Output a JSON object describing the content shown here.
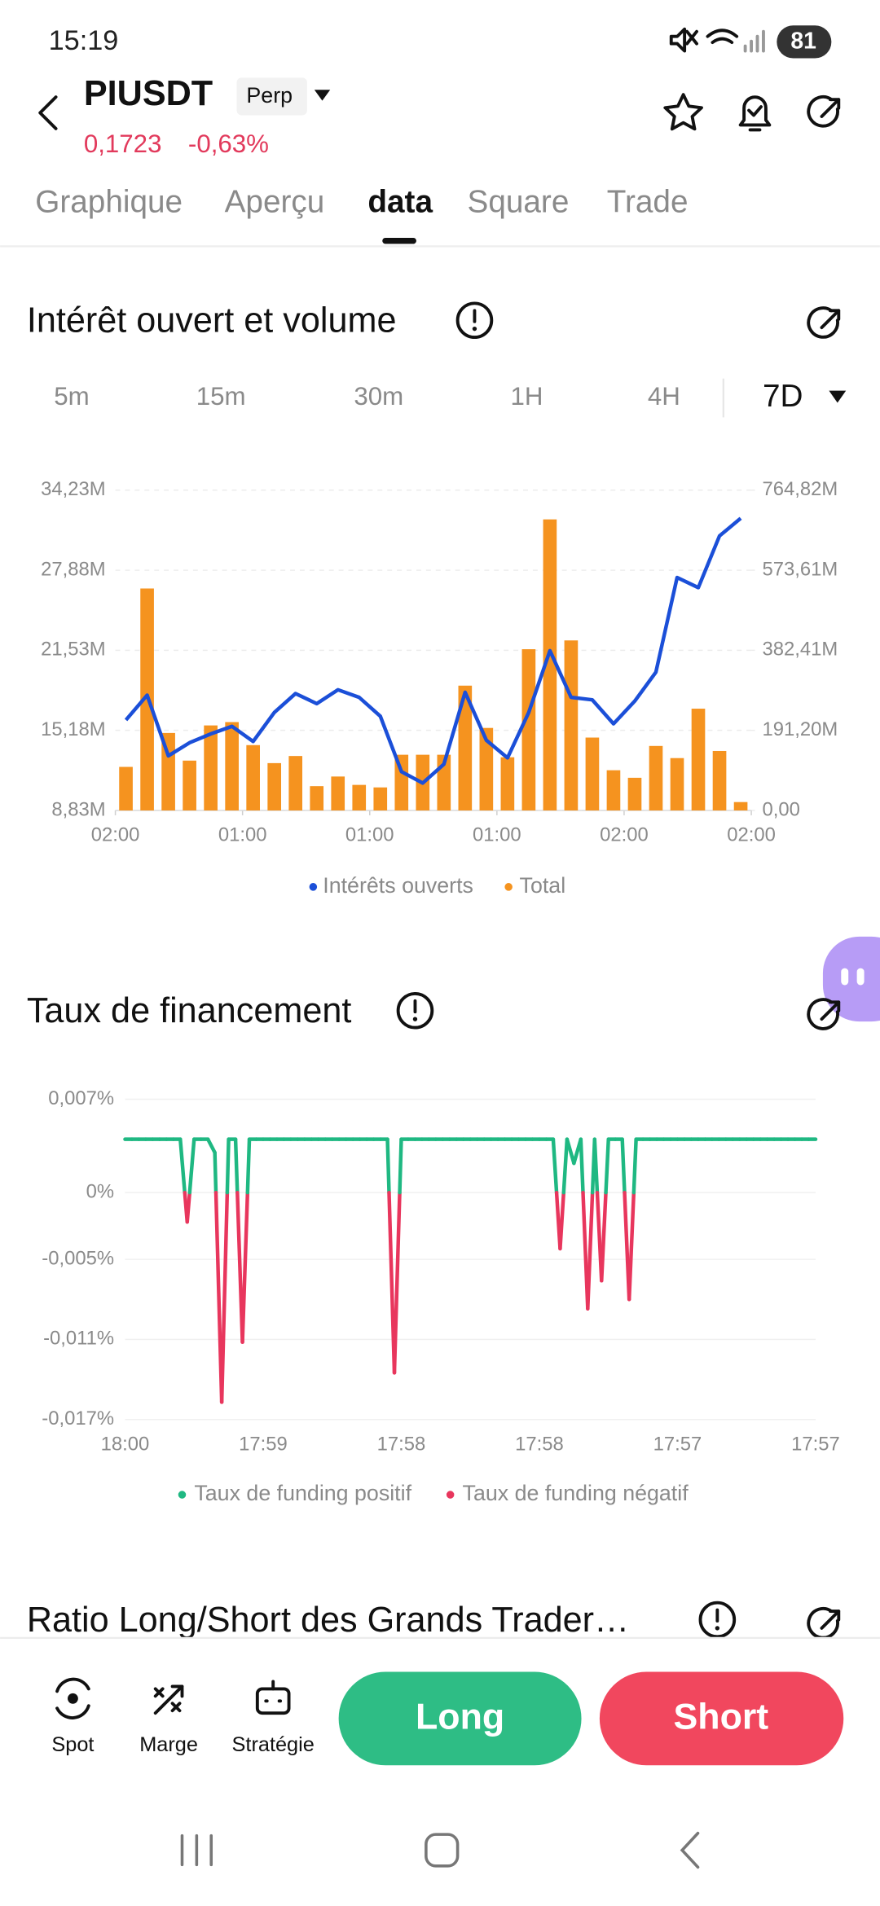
{
  "status_bar": {
    "time": "15:19",
    "battery": "81"
  },
  "header": {
    "symbol": "PIUSDT",
    "contract": "Perp",
    "price": "0,1723",
    "change": "-0,63%"
  },
  "tabs": [
    "Graphique",
    "Aperçu",
    "data",
    "Square",
    "Trade"
  ],
  "active_tab": 2,
  "sections": [
    {
      "title": "Intérêt ouvert et volume"
    },
    {
      "title": "Taux de financement"
    },
    {
      "title": "Ratio Long/Short des Grands Trader…"
    }
  ],
  "intervals": [
    "5m",
    "15m",
    "30m",
    "1H",
    "4H",
    "7D"
  ],
  "active_interval": 5,
  "chart_data": [
    {
      "type": "combo",
      "grid": true,
      "xlim": [
        0,
        30
      ],
      "xticks": [
        {
          "value": 0,
          "label": "02:00"
        },
        {
          "value": 6,
          "label": "01:00"
        },
        {
          "value": 12,
          "label": "01:00"
        },
        {
          "value": 18,
          "label": "01:00"
        },
        {
          "value": 24,
          "label": "02:00"
        },
        {
          "value": 30,
          "label": "02:00"
        }
      ],
      "ylim": [
        8.83,
        34.23
      ],
      "yticks": [
        {
          "value": 8.83,
          "label": "8,83M"
        },
        {
          "value": 15.18,
          "label": "15,18M"
        },
        {
          "value": 21.53,
          "label": "21,53M"
        },
        {
          "value": 27.88,
          "label": "27,88M"
        },
        {
          "value": 34.23,
          "label": "34,23M"
        }
      ],
      "y2lim": [
        0,
        764.82
      ],
      "y2ticks": [
        {
          "value": 0,
          "label": "0,00"
        },
        {
          "value": 191.2,
          "label": "191,20M"
        },
        {
          "value": 382.41,
          "label": "382,41M"
        },
        {
          "value": 573.61,
          "label": "573,61M"
        },
        {
          "value": 764.82,
          "label": "764,82M"
        }
      ],
      "series": [
        {
          "name": "Intérêts ouverts",
          "type": "line",
          "color": "#1b4fd8",
          "values": [
            16.0,
            17.97,
            13.16,
            14.2,
            14.9,
            15.5,
            14.3,
            16.6,
            18.1,
            17.3,
            18.4,
            17.8,
            16.3,
            11.9,
            11.0,
            12.5,
            18.2,
            14.4,
            13.0,
            16.6,
            21.5,
            17.8,
            17.6,
            15.7,
            17.5,
            19.8,
            27.3,
            26.5,
            30.6,
            32.0
          ]
        },
        {
          "name": "Total",
          "type": "bar",
          "axis": "y2",
          "color": "#f5931f",
          "values": [
            104,
            530,
            185,
            119,
            203,
            211,
            156,
            113,
            130,
            58,
            81,
            61,
            55,
            133,
            133,
            133,
            298,
            197,
            127,
            385,
            695,
            406,
            174,
            96,
            78,
            154,
            125,
            243,
            142,
            20
          ]
        }
      ]
    },
    {
      "type": "signed_line",
      "grid": true,
      "categories": [
        "18:00",
        null,
        null,
        null,
        null,
        null,
        null,
        null,
        null,
        null,
        null,
        null,
        null,
        null,
        null,
        null,
        null,
        null,
        null,
        null,
        "17:59",
        null,
        null,
        null,
        null,
        null,
        null,
        null,
        null,
        null,
        null,
        null,
        null,
        null,
        null,
        null,
        null,
        null,
        null,
        null,
        "17:58",
        null,
        null,
        null,
        null,
        null,
        null,
        null,
        null,
        null,
        null,
        null,
        null,
        null,
        null,
        null,
        null,
        null,
        null,
        null,
        "17:58",
        null,
        null,
        null,
        null,
        null,
        null,
        null,
        null,
        null,
        null,
        null,
        null,
        null,
        null,
        null,
        null,
        null,
        null,
        null,
        "17:57",
        null,
        null,
        null,
        null,
        null,
        null,
        null,
        null,
        null,
        null,
        null,
        null,
        null,
        null,
        null,
        null,
        null,
        null,
        null,
        "17:57"
      ],
      "values": [
        0.004,
        0.004,
        0.004,
        0.004,
        0.004,
        0.004,
        0.004,
        0.004,
        0.004,
        -0.0022,
        0.004,
        0.004,
        0.004,
        0.003,
        -0.0157,
        0.004,
        0.004,
        -0.0112,
        0.004,
        0.004,
        0.004,
        0.004,
        0.004,
        0.004,
        0.004,
        0.004,
        0.004,
        0.004,
        0.004,
        0.004,
        0.004,
        0.004,
        0.004,
        0.004,
        0.004,
        0.004,
        0.004,
        0.004,
        0.004,
        -0.0135,
        0.004,
        0.004,
        0.004,
        0.004,
        0.004,
        0.004,
        0.004,
        0.004,
        0.004,
        0.004,
        0.004,
        0.004,
        0.004,
        0.004,
        0.004,
        0.004,
        0.004,
        0.004,
        0.004,
        0.004,
        0.004,
        0.004,
        0.004,
        -0.0042,
        0.004,
        0.0022,
        0.004,
        -0.0087,
        0.004,
        -0.0066,
        0.004,
        0.004,
        0.004,
        -0.008,
        0.004,
        0.004,
        0.004,
        0.004,
        0.004,
        0.004,
        0.004,
        0.004,
        0.004,
        0.004,
        0.004,
        0.004,
        0.004,
        0.004,
        0.004,
        0.004,
        0.004,
        0.004,
        0.004,
        0.004,
        0.004,
        0.004,
        0.004,
        0.004,
        0.004,
        0.004,
        0.004
      ],
      "ylim": [
        -0.017,
        0.007
      ],
      "yticks": [
        {
          "value": 0.007,
          "label": "0,007%"
        },
        {
          "value": 0,
          "label": "0%"
        },
        {
          "value": -0.005,
          "label": "-0,005%"
        },
        {
          "value": -0.011,
          "label": "-0,011%"
        },
        {
          "value": -0.017,
          "label": "-0,017%"
        }
      ],
      "series": [
        {
          "name": "Taux de funding positif",
          "color": "#1fb882"
        },
        {
          "name": "Taux de funding négatif",
          "color": "#e8365d"
        }
      ]
    }
  ],
  "bottom_bar": {
    "items": [
      "Spot",
      "Marge",
      "Stratégie"
    ],
    "long": "Long",
    "short": "Short"
  }
}
